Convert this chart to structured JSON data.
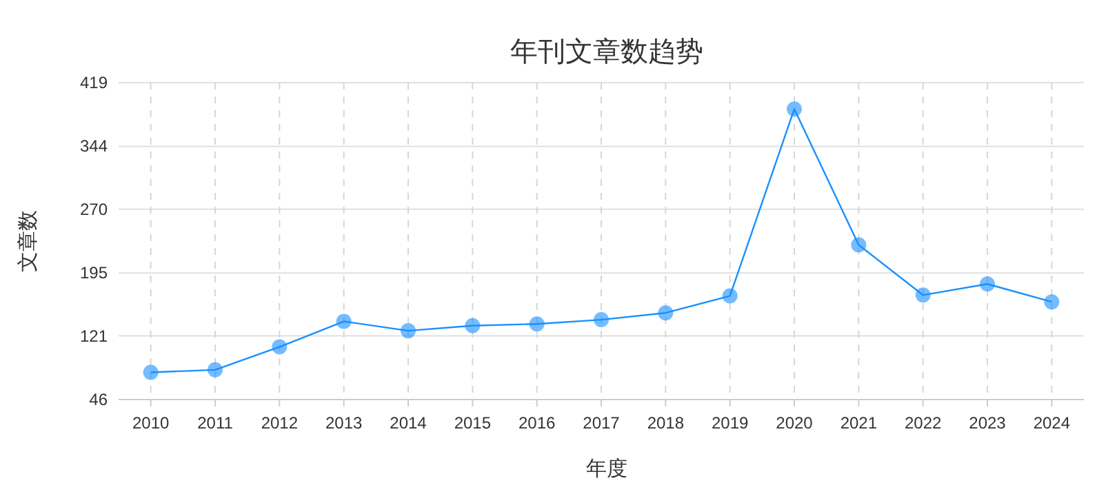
{
  "chart_data": {
    "type": "line",
    "title": "年刊文章数趋势",
    "xlabel": "年度",
    "ylabel": "文章数",
    "categories": [
      "2010",
      "2011",
      "2012",
      "2013",
      "2014",
      "2015",
      "2016",
      "2017",
      "2018",
      "2019",
      "2020",
      "2021",
      "2022",
      "2023",
      "2024"
    ],
    "series": [
      {
        "color": "#1890ff",
        "values": [
          78,
          81,
          108,
          138,
          127,
          133,
          135,
          140,
          148,
          168,
          388,
          228,
          169,
          182,
          161
        ]
      }
    ],
    "ylim": [
      46,
      419
    ],
    "yticks": [
      46,
      121,
      195,
      270,
      344,
      419
    ],
    "grid": true,
    "marker": "circle",
    "line_style": "solid"
  }
}
